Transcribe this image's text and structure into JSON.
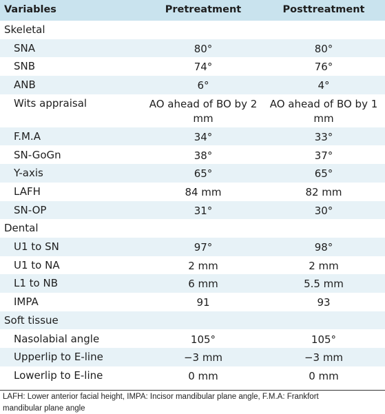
{
  "header": {
    "col1": "Variables",
    "col2": "Pretreatment",
    "col3": "Posttreatment"
  },
  "rows": [
    {
      "label": "Skeletal",
      "type": "section",
      "pre": "",
      "post": ""
    },
    {
      "label": "SNA",
      "type": "item",
      "pre": "80°",
      "post": "80°"
    },
    {
      "label": "SNB",
      "type": "item",
      "pre": "74°",
      "post": "76°"
    },
    {
      "label": "ANB",
      "type": "item",
      "pre": "6°",
      "post": "4°"
    },
    {
      "label": "Wits appraisal",
      "type": "item",
      "pre": "AO ahead of BO by 2 mm",
      "post": "AO ahead of BO by 1 mm"
    },
    {
      "label": "F.M.A",
      "type": "item",
      "pre": "34°",
      "post": "33°"
    },
    {
      "label": "SN-GoGn",
      "type": "item",
      "pre": "38°",
      "post": "37°"
    },
    {
      "label": "Y-axis",
      "type": "item",
      "pre": "65°",
      "post": "65°"
    },
    {
      "label": "LAFH",
      "type": "item",
      "pre": "84 mm",
      "post": "82 mm"
    },
    {
      "label": "SN-OP",
      "type": "item",
      "pre": "31°",
      "post": "30°"
    },
    {
      "label": "Dental",
      "type": "section",
      "pre": "",
      "post": ""
    },
    {
      "label": "U1 to SN",
      "type": "item",
      "pre": "97°",
      "post": "98°"
    },
    {
      "label": "U1 to NA",
      "type": "item",
      "pre": "2 mm",
      "post": "2 mm"
    },
    {
      "label": "L1 to NB",
      "type": "item",
      "pre": "6 mm",
      "post": "5.5 mm"
    },
    {
      "label": "IMPA",
      "type": "item",
      "pre": "91",
      "post": "93"
    },
    {
      "label": "Soft tissue",
      "type": "section",
      "pre": "",
      "post": ""
    },
    {
      "label": "Nasolabial angle",
      "type": "item",
      "pre": "105°",
      "post": "105°"
    },
    {
      "label": "Upperlip to E-line",
      "type": "item",
      "pre": "−3 mm",
      "post": "−3 mm"
    },
    {
      "label": "Lowerlip to E-line",
      "type": "item",
      "pre": "0 mm",
      "post": "0 mm"
    }
  ],
  "footnote": {
    "line1": "LAFH: Lower anterior facial height, IMPA: Incisor mandibular plane angle, F.M.A: Frankfort",
    "line2": "mandibular plane angle"
  }
}
